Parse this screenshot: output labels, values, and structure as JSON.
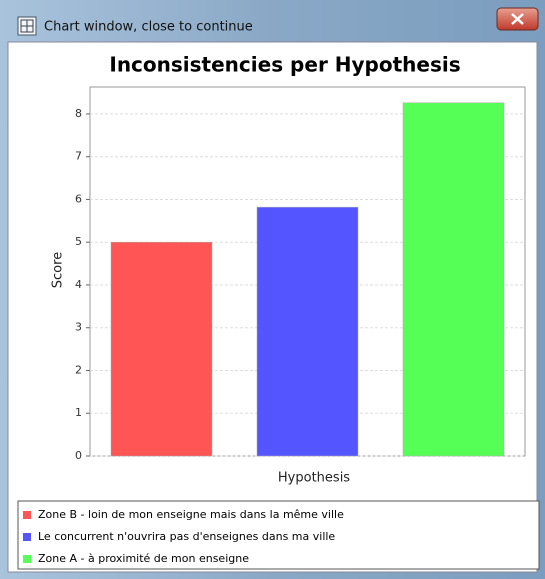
{
  "window": {
    "title": "Chart window, close to continue"
  },
  "chart_data": {
    "type": "bar",
    "title": "Inconsistencies per Hypothesis",
    "x_label": "Hypothesis",
    "y_label": "Score",
    "categories": [
      null
    ],
    "series": [
      {
        "name": "Zone B - loin de mon enseigne mais dans la même ville",
        "color": "#ff5555",
        "values": [
          5.0
        ]
      },
      {
        "name": "Le concurrent n'ouvrira pas d'enseignes dans ma ville",
        "color": "#5555ff",
        "values": [
          5.82
        ]
      },
      {
        "name": "Zone A - à proximité de mon enseigne",
        "color": "#55ff55",
        "values": [
          8.26
        ]
      }
    ],
    "ylim": [
      0,
      8.63
    ],
    "yticks": [
      0,
      1,
      2,
      3,
      4,
      5,
      6,
      7,
      8
    ],
    "grid": true,
    "legend": "bottom"
  }
}
